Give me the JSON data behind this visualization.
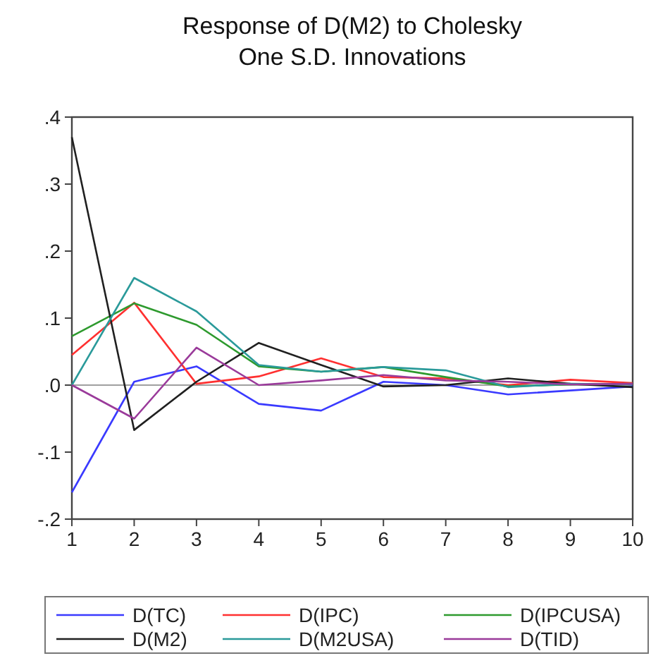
{
  "chart_data": {
    "type": "line",
    "title": "Response of D(M2) to Cholesky\nOne S.D. Innovations",
    "x": [
      1,
      2,
      3,
      4,
      5,
      6,
      7,
      8,
      9,
      10
    ],
    "xlim": [
      1,
      10
    ],
    "xticks": [
      1,
      2,
      3,
      4,
      5,
      6,
      7,
      8,
      9,
      10
    ],
    "ylim": [
      -0.2,
      0.4
    ],
    "yticks": [
      {
        "value": -0.2,
        "label": "-.2"
      },
      {
        "value": -0.1,
        "label": "-.1"
      },
      {
        "value": 0,
        "label": ".0"
      },
      {
        "value": 0.1,
        "label": ".1"
      },
      {
        "value": 0.2,
        "label": ".2"
      },
      {
        "value": 0.3,
        "label": ".3"
      },
      {
        "value": 0.4,
        "label": ".4"
      }
    ],
    "grid": false,
    "legend": "bottom",
    "marker": "none",
    "line_style": "solid",
    "ref_lines": [
      {
        "axis": "y",
        "value": 0,
        "color": "#a0a0a0"
      }
    ],
    "series": [
      {
        "name": "D(TC)",
        "color": "#3a3aff",
        "values": [
          -0.16,
          0.005,
          0.028,
          -0.028,
          -0.038,
          0.005,
          0.0,
          -0.014,
          -0.008,
          -0.002
        ]
      },
      {
        "name": "D(IPC)",
        "color": "#ff3030",
        "values": [
          0.045,
          0.123,
          0.002,
          0.013,
          0.04,
          0.012,
          0.01,
          0.0,
          0.008,
          0.003
        ]
      },
      {
        "name": "D(IPCUSA)",
        "color": "#2e9a2e",
        "values": [
          0.073,
          0.122,
          0.09,
          0.028,
          0.02,
          0.027,
          0.012,
          -0.002,
          0.001,
          0.002
        ]
      },
      {
        "name": "D(M2)",
        "color": "#202020",
        "values": [
          0.37,
          -0.067,
          0.005,
          0.063,
          0.03,
          -0.002,
          0.0,
          0.01,
          0.002,
          -0.003
        ]
      },
      {
        "name": "D(M2USA)",
        "color": "#2a9a9a",
        "values": [
          0.0,
          0.16,
          0.11,
          0.03,
          0.02,
          0.027,
          0.022,
          -0.003,
          0.002,
          0.001
        ]
      },
      {
        "name": "D(TID)",
        "color": "#9a3a9a",
        "values": [
          0.0,
          -0.05,
          0.056,
          0.0,
          0.007,
          0.015,
          0.007,
          0.005,
          0.001,
          0.002
        ]
      }
    ]
  }
}
